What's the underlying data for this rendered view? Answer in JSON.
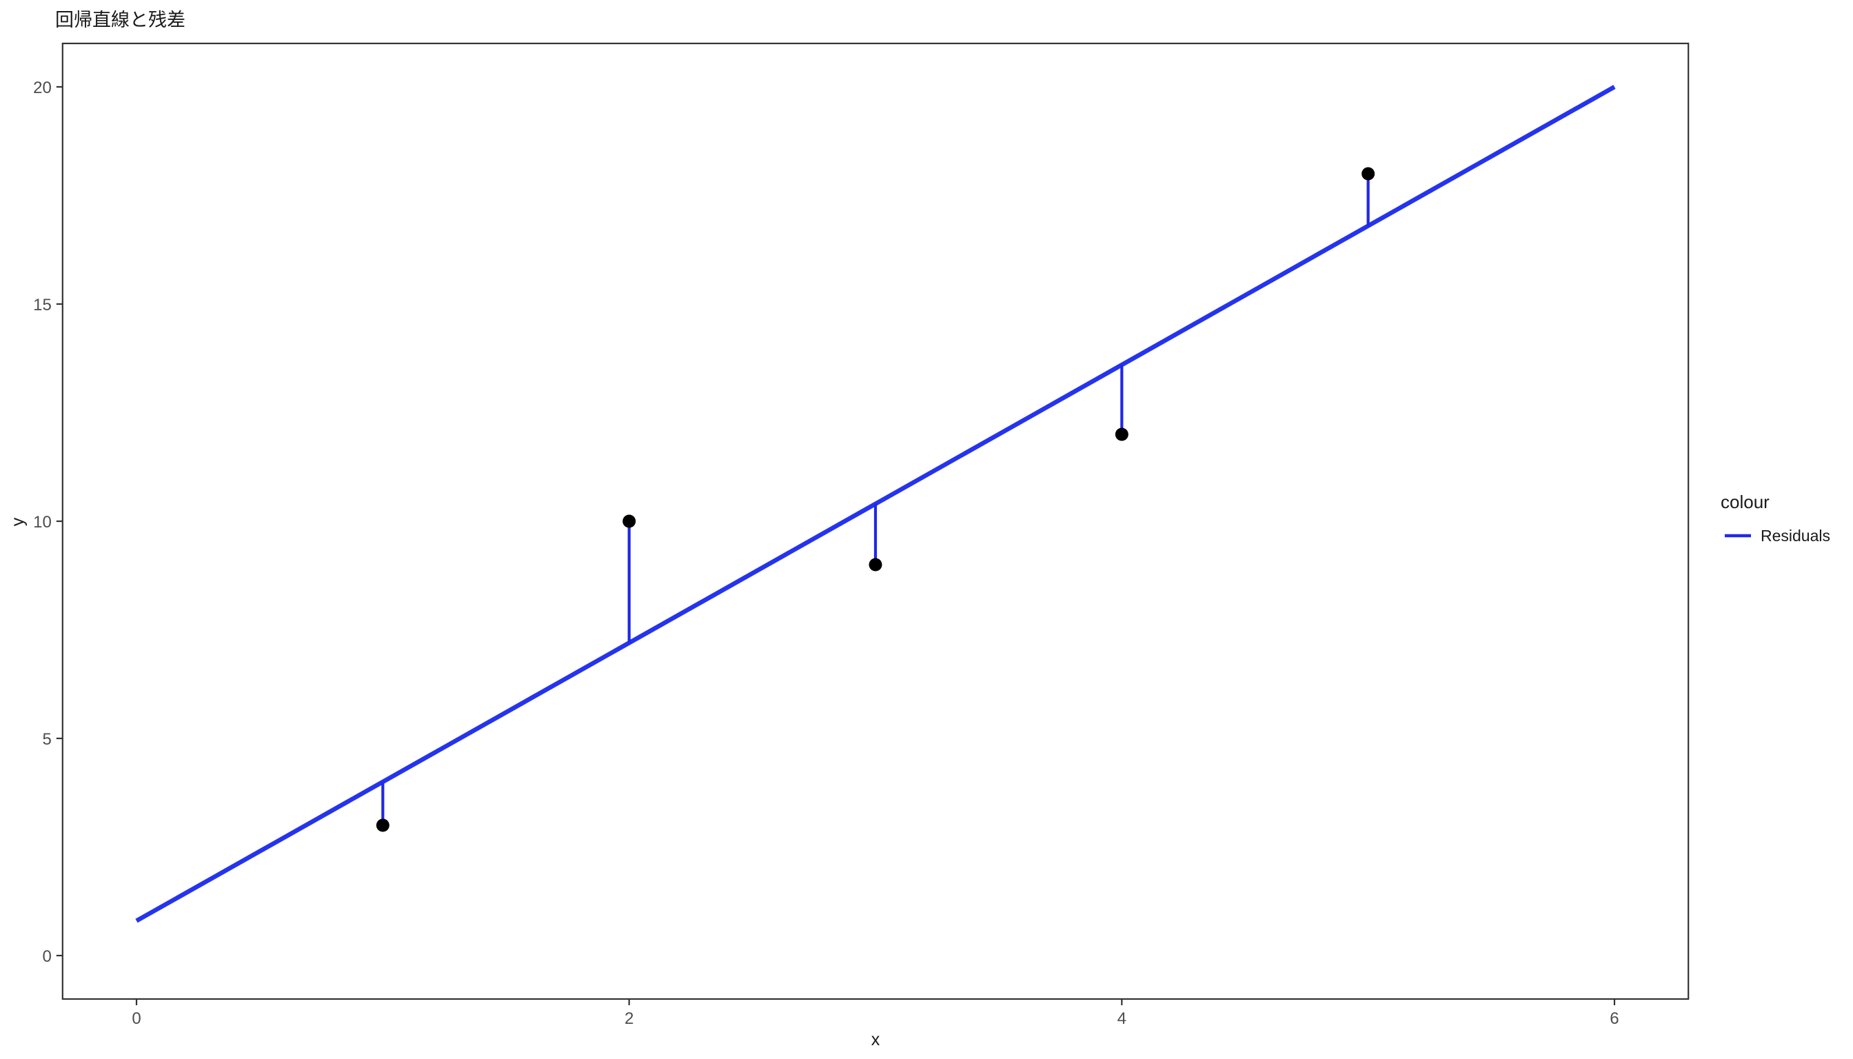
{
  "chart_data": {
    "type": "scatter",
    "title": "回帰直線と残差",
    "xlabel": "x",
    "ylabel": "y",
    "x_ticks": [
      0,
      2,
      4,
      6
    ],
    "y_ticks": [
      0,
      5,
      10,
      15,
      20
    ],
    "xlim": [
      -0.3,
      6.3
    ],
    "ylim": [
      -1,
      21
    ],
    "grid": false,
    "points": [
      {
        "x": 1,
        "y": 3,
        "fitted": 4.0
      },
      {
        "x": 2,
        "y": 10,
        "fitted": 7.2
      },
      {
        "x": 3,
        "y": 9,
        "fitted": 10.4
      },
      {
        "x": 4,
        "y": 12,
        "fitted": 13.6
      },
      {
        "x": 5,
        "y": 18,
        "fitted": 16.8
      }
    ],
    "regression_line": {
      "slope": 3.2,
      "intercept": 0.8,
      "x_start": 0,
      "x_end": 6,
      "color": "#2534ec"
    },
    "residual_color": "#2028e6",
    "point_color": "#000000",
    "legend": {
      "title": "colour",
      "position": "right",
      "entries": [
        {
          "label": "Residuals",
          "color": "#2029ea"
        }
      ]
    },
    "colors": {
      "panel_border": "#333333",
      "tick_mark": "#333333",
      "tick_label": "#4d4d4d",
      "background": "#ffffff"
    }
  }
}
